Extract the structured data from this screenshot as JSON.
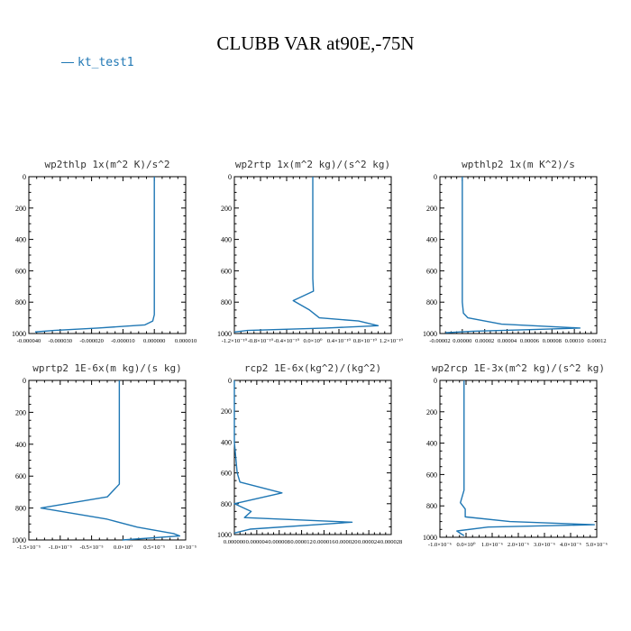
{
  "title": "CLUBB VAR at90E,-75N",
  "legend": {
    "label": "kt_test1",
    "color": "#1f77b4"
  },
  "chart_data": [
    {
      "type": "line",
      "title": "wp2thlp   1x(m^2 K)/s^2",
      "xlim": [
        -4e-05,
        1e-05
      ],
      "ylim": [
        1000,
        0
      ],
      "yticks": [
        "0",
        "200",
        "400",
        "600",
        "800",
        "1000"
      ],
      "xticks": [
        "-0.000040",
        "-0.000030",
        "-0.000020",
        "-0.000010",
        "0.000000",
        "0.000010"
      ],
      "series": [
        {
          "x": [
            0,
            0,
            0,
            0,
            0,
            0,
            0,
            -5e-07,
            -3e-06,
            -1.8e-05,
            -3.2e-05,
            -3.8e-05
          ],
          "y": [
            0,
            200,
            400,
            600,
            800,
            850,
            880,
            920,
            945,
            965,
            980,
            990
          ]
        }
      ]
    },
    {
      "type": "line",
      "title": "wp2rtp   1x(m^2 kg)/(s^2 kg)",
      "xlim": [
        -1.2e-10,
        1.2e-10
      ],
      "ylim": [
        1000,
        0
      ],
      "yticks": [
        "0",
        "200",
        "400",
        "600",
        "800",
        "1000"
      ],
      "xticks": [
        "-1.2×10⁻¹⁰",
        "-0.8×10⁻¹⁰",
        "-0.4×10⁻¹⁰",
        "0.0×10⁰",
        "0.4×10⁻¹⁰",
        "0.8×10⁻¹⁰",
        "1.2×10⁻¹⁰"
      ],
      "series": [
        {
          "x": [
            0,
            0,
            0,
            0,
            0,
            1e-12,
            -3e-11,
            -5e-12,
            1e-11,
            7e-11,
            1e-10,
            2e-11,
            -1e-10,
            -1.2e-10
          ],
          "y": [
            0,
            200,
            400,
            600,
            650,
            730,
            790,
            850,
            900,
            920,
            950,
            965,
            980,
            990
          ]
        }
      ]
    },
    {
      "type": "line",
      "title": "wpthlp2   1x(m K^2)/s",
      "xlim": [
        -2e-05,
        0.00012
      ],
      "ylim": [
        1000,
        0
      ],
      "yticks": [
        "0",
        "200",
        "400",
        "600",
        "800",
        "1000"
      ],
      "xticks": [
        "-0.00002",
        "0.00000",
        "0.00002",
        "0.00004",
        "0.00006",
        "0.00008",
        "0.00010",
        "0.00012"
      ],
      "series": [
        {
          "x": [
            0,
            0,
            0,
            0,
            0,
            1e-06,
            5e-06,
            3.5e-05,
            0.000105,
            6e-05,
            1e-05,
            -1.5e-05
          ],
          "y": [
            0,
            200,
            400,
            600,
            800,
            870,
            900,
            940,
            965,
            975,
            985,
            995
          ]
        }
      ]
    },
    {
      "type": "line",
      "title": "wprtp2   1E-6x(m kg)/(s kg)",
      "xlim": [
        -1.5e-05,
        1.1e-05
      ],
      "ylim": [
        1000,
        0
      ],
      "yticks": [
        "0",
        "200",
        "400",
        "600",
        "800",
        "1000"
      ],
      "xticks": [
        "-1.5×10⁻⁵",
        "-1.0×10⁻⁵",
        "-0.5×10⁻⁵",
        "0.0×10⁰",
        "0.5×10⁻⁵",
        "1.0×10⁻⁵"
      ],
      "series": [
        {
          "x": [
            0,
            0,
            0,
            0,
            0,
            -2e-06,
            -1.3e-05,
            -2e-06,
            3e-06,
            9e-06,
            1e-05,
            5e-07
          ],
          "y": [
            0,
            200,
            400,
            600,
            650,
            730,
            800,
            870,
            920,
            960,
            975,
            1000
          ]
        }
      ]
    },
    {
      "type": "line",
      "title": "rcp2   1E-6x(kg^2)/(kg^2)",
      "xlim": [
        0,
        2.8e-05
      ],
      "ylim": [
        1000,
        0
      ],
      "yticks": [
        "0",
        "200",
        "400",
        "600",
        "800",
        "1000"
      ],
      "xticks": [
        "0.000000",
        "0.000004",
        "0.000008",
        "0.000012",
        "0.000016",
        "0.000020",
        "0.000024",
        "0.000028"
      ],
      "series": [
        {
          "x": [
            0,
            0,
            0,
            5e-07,
            1e-06,
            8.5e-06,
            0,
            3e-06,
            1.8e-06,
            2.1e-05,
            2.8e-06,
            0
          ],
          "y": [
            0,
            200,
            400,
            600,
            660,
            730,
            800,
            850,
            890,
            920,
            965,
            990
          ]
        }
      ]
    },
    {
      "type": "line",
      "title": "wp2rcp   1E-3x(m^2 kg)/(s^2 kg)",
      "xlim": [
        -1e-06,
        5.5e-06
      ],
      "ylim": [
        1000,
        0
      ],
      "yticks": [
        "0",
        "200",
        "400",
        "600",
        "800",
        "1000"
      ],
      "xticks": [
        "-1.0×10⁻⁶",
        "0.0×10⁰",
        "1.0×10⁻⁶",
        "2.0×10⁻⁶",
        "3.0×10⁻⁶",
        "4.0×10⁻⁶",
        "5.0×10⁻⁶"
      ],
      "series": [
        {
          "x": [
            0,
            0,
            0,
            0,
            0,
            -1.5e-07,
            5e-08,
            5e-08,
            1.9e-06,
            5.4e-06,
            1e-06,
            -3e-07,
            0
          ],
          "y": [
            0,
            200,
            400,
            600,
            700,
            780,
            820,
            870,
            900,
            920,
            935,
            960,
            990
          ]
        }
      ]
    }
  ]
}
